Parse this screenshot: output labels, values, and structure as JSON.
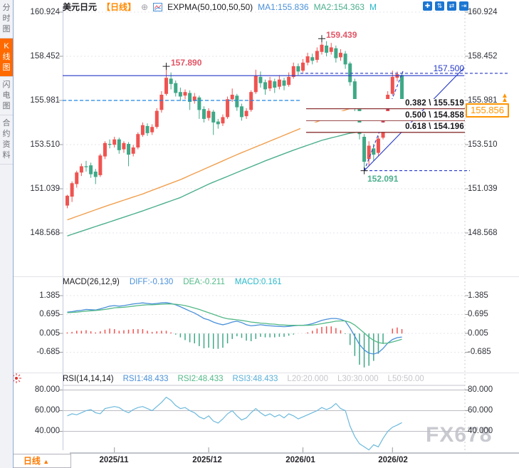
{
  "sidebar": {
    "tabs": [
      {
        "label": "分时图",
        "active": false
      },
      {
        "label": "K线图",
        "active": true
      },
      {
        "label": "闪电图",
        "active": false
      },
      {
        "label": "合约资料",
        "active": false
      }
    ]
  },
  "header": {
    "symbol": "美元日元",
    "period_tag": "【日线】",
    "expand_glyph": "⊕",
    "indicator": "EXPMA(50,100,50,50)",
    "ma1_label": "MA1:155.836",
    "ma2_label": "MA2:154.363",
    "ma3_label": "M",
    "toolbar_icons": [
      {
        "name": "pan-move-icon",
        "glyph": "✚"
      },
      {
        "name": "price-axis-scale-icon",
        "glyph": "⇅"
      },
      {
        "name": "time-axis-scale-icon",
        "glyph": "⇄"
      },
      {
        "name": "shift-right-icon",
        "glyph": "⇥"
      }
    ]
  },
  "price_axis": {
    "labels": [
      "160.924",
      "158.452",
      "155.981",
      "153.510",
      "151.039",
      "148.568"
    ]
  },
  "annotations": {
    "high1": {
      "text": "157.890",
      "price": 157.89,
      "index": 21
    },
    "high2": {
      "text": "159.439",
      "price": 159.439,
      "index": 54
    },
    "low": {
      "text": "152.091",
      "price": 152.091,
      "index": 63
    },
    "hline_label": {
      "text": "157.500",
      "price": 157.5
    },
    "fib": [
      {
        "text": "0.382 \\ 155.519",
        "price": 155.519
      },
      {
        "text": "0.500 \\ 154.858",
        "price": 154.858
      },
      {
        "text": "0.618 \\ 154.196",
        "price": 154.196
      }
    ],
    "current_price": {
      "text": "155.856",
      "price": 155.856
    },
    "arrow_glyph": "▲"
  },
  "macd_panel": {
    "title": "MACD(26,12,9)",
    "diff_label": "DIFF:-0.130",
    "dea_label": "DEA:-0.211",
    "macd_label": "MACD:0.161",
    "axis": [
      "1.385",
      "0.695",
      "0.005",
      "-0.685"
    ]
  },
  "rsi_panel": {
    "title": "RSI(14,14,14)",
    "rsi1_label": "RSI1:48.433",
    "rsi2_label": "RSI2:48.433",
    "rsi3_label": "RSI3:48.433",
    "l20_label": "L20:20.000",
    "l30_label": "L30:30.000",
    "l50_label": "L50:50.00",
    "axis": [
      "80.000",
      "60.000",
      "40.000"
    ]
  },
  "bottom": {
    "period_label": "日线",
    "arrow": "▲",
    "dates": [
      "2025/11",
      "2025/12",
      "2026/01",
      "2026/02"
    ]
  },
  "watermark": "FX678",
  "colors": {
    "up_candle": "#ef5350",
    "down_candle": "#3fa887",
    "ma1": "#f0a050",
    "ma2": "#4caf8e",
    "diff_line": "#4a90d9",
    "dea_line": "#53b987",
    "rsi_line": "#6cb9dc",
    "trend_blue": "#2438c8",
    "dashed_blue": "#1e88e5",
    "fib_line": "#8b3333",
    "accent_orange": "#ff9500",
    "active_tab": "#ff6a00"
  },
  "chart_data": [
    {
      "type": "candlestick",
      "title": "美元日元 日线 (USD/JPY daily)",
      "y_axis_labels": [
        160.924,
        158.452,
        155.981,
        153.51,
        151.039,
        148.568
      ],
      "x_tick_labels": [
        "2025/11",
        "2025/12",
        "2026/01",
        "2026/02"
      ],
      "x_tick_indices": [
        10,
        30,
        50,
        69
      ],
      "candles": [
        [
          150.1,
          150.7,
          149.95,
          150.65
        ],
        [
          150.6,
          151.45,
          150.3,
          151.35
        ],
        [
          151.3,
          152.05,
          151.1,
          151.95
        ],
        [
          151.95,
          152.45,
          151.75,
          152.3
        ],
        [
          152.3,
          152.6,
          152.0,
          152.25
        ],
        [
          152.35,
          152.5,
          151.65,
          151.85
        ],
        [
          152.0,
          152.15,
          151.3,
          151.7
        ],
        [
          151.8,
          153.0,
          151.7,
          152.9
        ],
        [
          152.85,
          153.7,
          152.7,
          153.6
        ],
        [
          153.55,
          153.8,
          153.3,
          153.5
        ],
        [
          153.5,
          153.95,
          153.35,
          153.8
        ],
        [
          153.8,
          153.9,
          153.0,
          153.2
        ],
        [
          153.25,
          153.7,
          153.05,
          153.6
        ],
        [
          153.55,
          153.65,
          152.3,
          152.95
        ],
        [
          153.0,
          153.5,
          152.85,
          153.35
        ],
        [
          153.35,
          154.2,
          153.25,
          154.1
        ],
        [
          154.05,
          154.75,
          153.95,
          154.6
        ],
        [
          154.55,
          154.7,
          154.0,
          154.15
        ],
        [
          154.2,
          154.65,
          154.05,
          154.5
        ],
        [
          154.5,
          155.55,
          154.4,
          155.4
        ],
        [
          155.45,
          156.5,
          155.3,
          156.3
        ],
        [
          156.35,
          157.89,
          156.25,
          157.25
        ],
        [
          157.2,
          157.55,
          156.6,
          156.9
        ],
        [
          156.95,
          157.1,
          156.2,
          156.4
        ],
        [
          156.45,
          156.7,
          155.95,
          156.2
        ],
        [
          156.25,
          156.6,
          156.05,
          156.45
        ],
        [
          156.4,
          156.55,
          155.45,
          155.9
        ],
        [
          155.95,
          156.4,
          155.8,
          156.2
        ],
        [
          156.15,
          156.25,
          154.95,
          155.45
        ],
        [
          155.5,
          155.65,
          154.75,
          154.95
        ],
        [
          155.0,
          155.55,
          154.85,
          155.4
        ],
        [
          155.35,
          155.45,
          154.05,
          154.75
        ],
        [
          154.8,
          154.95,
          154.4,
          154.65
        ],
        [
          154.7,
          155.2,
          154.55,
          155.05
        ],
        [
          155.05,
          156.2,
          154.95,
          156.05
        ],
        [
          156.05,
          156.65,
          155.9,
          156.3
        ],
        [
          156.25,
          156.35,
          155.4,
          155.6
        ],
        [
          155.65,
          155.8,
          154.85,
          155.05
        ],
        [
          155.1,
          155.55,
          154.95,
          155.4
        ],
        [
          155.45,
          156.55,
          155.35,
          156.45
        ],
        [
          156.45,
          157.7,
          156.35,
          157.35
        ],
        [
          157.3,
          157.6,
          156.7,
          156.95
        ],
        [
          157.0,
          157.15,
          156.3,
          156.6
        ],
        [
          156.65,
          157.3,
          156.5,
          157.1
        ],
        [
          157.05,
          157.2,
          156.4,
          156.7
        ],
        [
          156.75,
          157.4,
          156.6,
          157.15
        ],
        [
          157.1,
          157.25,
          156.55,
          156.8
        ],
        [
          156.85,
          157.55,
          156.75,
          157.3
        ],
        [
          157.3,
          158.1,
          157.2,
          157.9
        ],
        [
          157.9,
          158.05,
          157.4,
          157.6
        ],
        [
          157.65,
          158.3,
          157.55,
          158.1
        ],
        [
          158.1,
          158.65,
          157.95,
          158.45
        ],
        [
          158.4,
          158.6,
          158.0,
          158.2
        ],
        [
          158.25,
          158.95,
          158.1,
          158.75
        ],
        [
          158.7,
          159.439,
          158.55,
          159.1
        ],
        [
          159.05,
          159.3,
          158.45,
          158.65
        ],
        [
          158.7,
          159.2,
          158.55,
          158.95
        ],
        [
          158.9,
          159.05,
          158.1,
          158.35
        ],
        [
          158.4,
          158.85,
          158.2,
          158.65
        ],
        [
          158.6,
          158.75,
          157.75,
          158.0
        ],
        [
          158.05,
          158.15,
          156.8,
          157.0
        ],
        [
          157.05,
          157.2,
          155.3,
          155.55
        ],
        [
          155.5,
          155.65,
          153.8,
          154.1
        ],
        [
          153.95,
          154.1,
          152.091,
          152.55
        ],
        [
          152.7,
          153.7,
          152.3,
          153.45
        ],
        [
          153.3,
          153.55,
          152.6,
          152.95
        ],
        [
          153.05,
          154.0,
          152.9,
          153.85
        ],
        [
          153.9,
          155.3,
          153.8,
          155.15
        ],
        [
          155.2,
          156.5,
          155.05,
          156.3
        ],
        [
          156.35,
          157.65,
          156.25,
          157.3
        ],
        [
          157.25,
          157.6,
          157.05,
          157.45
        ],
        [
          157.4,
          157.5,
          155.55,
          155.856
        ]
      ],
      "ma1_anchors": [
        [
          0,
          149.3
        ],
        [
          8,
          150.05
        ],
        [
          16,
          150.75
        ],
        [
          24,
          151.55
        ],
        [
          30,
          152.25
        ],
        [
          36,
          152.95
        ],
        [
          42,
          153.6
        ],
        [
          48,
          154.25
        ],
        [
          54,
          154.9
        ],
        [
          58,
          155.35
        ],
        [
          62,
          155.72
        ],
        [
          66,
          155.9
        ],
        [
          69,
          155.88
        ],
        [
          71,
          155.836
        ]
      ],
      "ma2_anchors": [
        [
          0,
          148.4
        ],
        [
          8,
          149.1
        ],
        [
          16,
          149.8
        ],
        [
          24,
          150.55
        ],
        [
          30,
          151.3
        ],
        [
          36,
          151.95
        ],
        [
          42,
          152.6
        ],
        [
          48,
          153.2
        ],
        [
          54,
          153.75
        ],
        [
          60,
          154.15
        ],
        [
          64,
          154.3
        ],
        [
          68,
          154.38
        ],
        [
          71,
          154.363
        ]
      ],
      "levels": {
        "solid_resistance": 157.37,
        "dashed_157500": 157.5,
        "dashed_155981": 155.981,
        "dashed_152091": 152.091,
        "fib": [
          155.519,
          154.858,
          154.196
        ]
      }
    },
    {
      "type": "macd",
      "axis_values": [
        1.385,
        0.695,
        0.005,
        -0.685
      ],
      "diff": [
        0.78,
        0.8,
        0.83,
        0.85,
        0.88,
        0.87,
        0.86,
        0.9,
        0.95,
        1.0,
        1.02,
        1.0,
        1.02,
        1.05,
        1.08,
        1.1,
        1.12,
        1.1,
        1.08,
        1.1,
        1.12,
        1.13,
        1.1,
        1.05,
        0.98,
        0.9,
        0.82,
        0.75,
        0.65,
        0.55,
        0.5,
        0.42,
        0.36,
        0.32,
        0.36,
        0.42,
        0.45,
        0.4,
        0.32,
        0.28,
        0.3,
        0.32,
        0.3,
        0.28,
        0.27,
        0.26,
        0.25,
        0.26,
        0.28,
        0.3,
        0.3,
        0.32,
        0.36,
        0.42,
        0.48,
        0.52,
        0.55,
        0.55,
        0.52,
        0.45,
        0.2,
        -0.1,
        -0.4,
        -0.6,
        -0.72,
        -0.75,
        -0.7,
        -0.55,
        -0.35,
        -0.22,
        -0.15,
        -0.13
      ],
      "dea": [
        0.76,
        0.77,
        0.78,
        0.8,
        0.82,
        0.83,
        0.84,
        0.86,
        0.88,
        0.91,
        0.94,
        0.95,
        0.96,
        0.98,
        1.0,
        1.02,
        1.04,
        1.05,
        1.05,
        1.06,
        1.07,
        1.08,
        1.08,
        1.07,
        1.05,
        1.02,
        0.98,
        0.93,
        0.88,
        0.82,
        0.76,
        0.7,
        0.64,
        0.58,
        0.54,
        0.52,
        0.5,
        0.48,
        0.45,
        0.42,
        0.4,
        0.38,
        0.37,
        0.35,
        0.34,
        0.32,
        0.31,
        0.3,
        0.3,
        0.3,
        0.3,
        0.3,
        0.31,
        0.33,
        0.36,
        0.39,
        0.42,
        0.45,
        0.46,
        0.46,
        0.41,
        0.31,
        0.17,
        0.02,
        -0.13,
        -0.25,
        -0.33,
        -0.36,
        -0.35,
        -0.31,
        -0.26,
        -0.211
      ],
      "hist_formula": "2*(diff-dea)"
    },
    {
      "type": "line",
      "name": "RSI",
      "gridlines": [
        80,
        60,
        40
      ],
      "values": [
        55,
        57,
        56,
        58,
        60,
        61,
        58,
        57,
        62,
        63,
        64,
        63,
        60,
        58,
        61,
        63,
        64,
        62,
        60,
        64,
        68,
        73,
        70,
        65,
        62,
        63,
        60,
        58,
        54,
        52,
        55,
        50,
        48,
        52,
        57,
        60,
        55,
        51,
        53,
        58,
        62,
        58,
        55,
        57,
        54,
        56,
        53,
        57,
        55,
        52,
        54,
        56,
        58,
        60,
        63,
        61,
        63,
        67,
        62,
        60,
        45,
        35,
        28,
        25,
        22,
        27,
        25,
        33,
        40,
        44,
        46,
        48.4
      ]
    }
  ]
}
